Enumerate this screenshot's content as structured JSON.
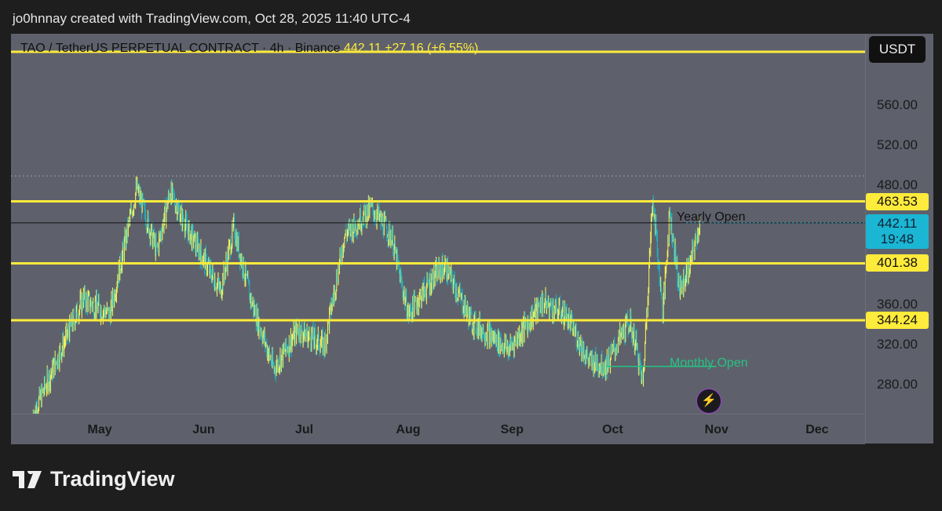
{
  "credit": "jo0hnnay created with TradingView.com, Oct 28, 2025 11:40 UTC-4",
  "legend": {
    "symbol": "TAO / TetherUS PERPETUAL CONTRACT · 4h · Binance",
    "price": "442.11",
    "change": "+27.16 (+6.55%)"
  },
  "currency_button": "USDT",
  "footer_logo": "TradingView",
  "chart_data": {
    "type": "candlestick",
    "title": "TAO / TetherUS PERPETUAL CONTRACT · 4h · Binance",
    "ylim": [
      256,
      616
    ],
    "x_origin": "2025-04-01",
    "yticks": [
      "560.00",
      "520.00",
      "480.00",
      "360.00",
      "320.00",
      "280.00"
    ],
    "ytick_values": [
      560,
      520,
      480,
      360,
      320,
      280
    ],
    "xticks": [
      {
        "label": "May",
        "day": 30
      },
      {
        "label": "Jun",
        "day": 61
      },
      {
        "label": "Jul",
        "day": 91
      },
      {
        "label": "Aug",
        "day": 122
      },
      {
        "label": "Sep",
        "day": 153
      },
      {
        "label": "Oct",
        "day": 183
      },
      {
        "label": "Nov",
        "day": 214
      },
      {
        "label": "Dec",
        "day": 244
      }
    ],
    "series": [
      {
        "d": 10,
        "p": 250
      },
      {
        "d": 11,
        "p": 256
      },
      {
        "d": 19,
        "p": 319
      },
      {
        "d": 25,
        "p": 366
      },
      {
        "d": 33,
        "p": 350
      },
      {
        "d": 39,
        "p": 445
      },
      {
        "d": 41,
        "p": 477
      },
      {
        "d": 47,
        "p": 414
      },
      {
        "d": 51,
        "p": 473
      },
      {
        "d": 56,
        "p": 437
      },
      {
        "d": 61,
        "p": 406
      },
      {
        "d": 66,
        "p": 374
      },
      {
        "d": 70,
        "p": 437
      },
      {
        "d": 75,
        "p": 366
      },
      {
        "d": 82,
        "p": 295
      },
      {
        "d": 89,
        "p": 335
      },
      {
        "d": 97,
        "p": 319
      },
      {
        "d": 103,
        "p": 429
      },
      {
        "d": 111,
        "p": 457
      },
      {
        "d": 117,
        "p": 429
      },
      {
        "d": 122,
        "p": 350
      },
      {
        "d": 130,
        "p": 390
      },
      {
        "d": 133,
        "p": 398
      },
      {
        "d": 141,
        "p": 343
      },
      {
        "d": 152,
        "p": 315
      },
      {
        "d": 162,
        "p": 362
      },
      {
        "d": 169,
        "p": 350
      },
      {
        "d": 176,
        "p": 303
      },
      {
        "d": 181,
        "p": 299
      },
      {
        "d": 188,
        "p": 343
      },
      {
        "d": 190,
        "p": 319
      },
      {
        "d": 192,
        "p": 280
      },
      {
        "d": 195,
        "p": 469
      },
      {
        "d": 198,
        "p": 350
      },
      {
        "d": 200,
        "p": 453
      },
      {
        "d": 203,
        "p": 374
      },
      {
        "d": 206,
        "p": 398
      },
      {
        "d": 209,
        "p": 442
      }
    ],
    "horizontal_levels": [
      {
        "price": 613.5,
        "label": ""
      },
      {
        "price": 463.53,
        "label": "463.53"
      },
      {
        "price": 401.38,
        "label": "401.38"
      },
      {
        "price": 344.24,
        "label": "344.24"
      }
    ],
    "yearly_open": {
      "price": 442,
      "label": "Yearly Open"
    },
    "monthly_open": {
      "price": 298,
      "label": "Monthly Open",
      "from_day": 181,
      "to_day": 214
    },
    "last_price": {
      "price": 442.11,
      "label": "442.11",
      "countdown": "19:48"
    },
    "colors": {
      "up": "#f5ef5a",
      "down": "#21b3c4",
      "level": "#ffeb3b",
      "monthly": "#26c281"
    }
  }
}
